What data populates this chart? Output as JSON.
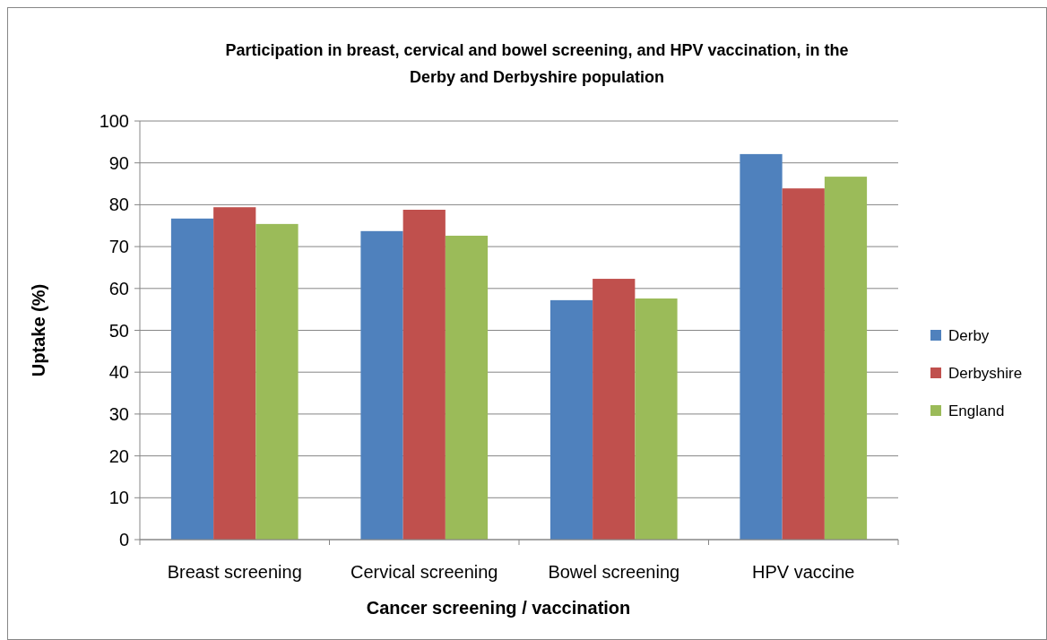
{
  "chart_data": {
    "type": "bar",
    "title": "Participation in breast, cervical and bowel screening, and HPV vaccination, in the Derby and Derbyshire population",
    "xlabel": "Cancer screening / vaccination",
    "ylabel": "Uptake (%)",
    "categories": [
      "Breast screening",
      "Cervical screening",
      "Bowel screening",
      "HPV vaccine"
    ],
    "series": [
      {
        "name": "Derby",
        "color": "#4f81bd",
        "values": [
          76.7,
          73.7,
          57.2,
          92.1
        ]
      },
      {
        "name": "Derbyshire",
        "color": "#c0504d",
        "values": [
          79.4,
          78.8,
          62.3,
          83.9
        ]
      },
      {
        "name": "England",
        "color": "#9bbb59",
        "values": [
          75.4,
          72.6,
          57.6,
          86.7
        ]
      }
    ],
    "ylim": [
      0,
      100
    ],
    "yticks": [
      0,
      10,
      20,
      30,
      40,
      50,
      60,
      70,
      80,
      90,
      100
    ],
    "grid": "y",
    "legend": "right"
  }
}
